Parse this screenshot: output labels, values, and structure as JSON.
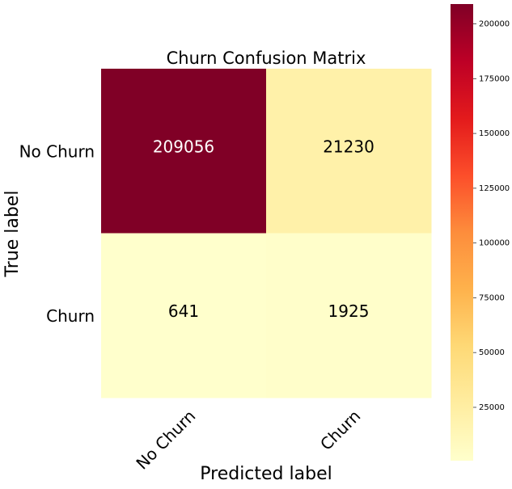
{
  "chart_data": {
    "type": "heatmap",
    "title": "Churn Confusion Matrix",
    "xlabel": "Predicted label",
    "ylabel": "True label",
    "x_categories": [
      "No Churn",
      "Churn"
    ],
    "y_categories": [
      "No Churn",
      "Churn"
    ],
    "values": [
      [
        209056,
        21230
      ],
      [
        641,
        1925
      ]
    ],
    "colormap": "YlOrRd",
    "clim": [
      641,
      209056
    ],
    "colorbar_ticks": [
      25000,
      50000,
      75000,
      100000,
      125000,
      150000,
      175000,
      200000
    ]
  }
}
